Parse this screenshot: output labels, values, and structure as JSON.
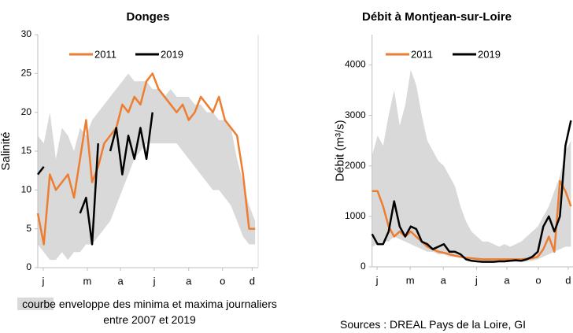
{
  "chart_data": [
    {
      "type": "line",
      "title": "Donges",
      "ylabel": "Salinité",
      "x": [
        0,
        10,
        20,
        30,
        40,
        50,
        60,
        70,
        80,
        90,
        100,
        110,
        120,
        130,
        140,
        150,
        160,
        170,
        180,
        190,
        200,
        210,
        220,
        230,
        240,
        250,
        260,
        270,
        280,
        290,
        300,
        310,
        320,
        330,
        340,
        350,
        360
      ],
      "xlim": [
        0,
        365
      ],
      "xticks": [
        {
          "value": 9,
          "label": "j"
        },
        {
          "value": 82,
          "label": "m"
        },
        {
          "value": 137,
          "label": "a"
        },
        {
          "value": 193,
          "label": "j"
        },
        {
          "value": 250,
          "label": "a"
        },
        {
          "value": 306,
          "label": "o"
        },
        {
          "value": 355,
          "label": "d"
        }
      ],
      "ylim": [
        0,
        30
      ],
      "yticks": [
        0,
        5,
        10,
        15,
        20,
        25,
        30
      ],
      "envelope": {
        "name": "courbe enveloppe des minima et maxima journaliers entre 2007 et 2019",
        "color": "#d9d9d9",
        "low": [
          3,
          2,
          1,
          1,
          2,
          1,
          2,
          2,
          3,
          3,
          4,
          5,
          6,
          8,
          10,
          12,
          14,
          15,
          16,
          16,
          16,
          16,
          16,
          16,
          15,
          14,
          13,
          12,
          11,
          10,
          10,
          9,
          8,
          6,
          4,
          3,
          3
        ],
        "high": [
          17,
          16,
          20,
          14,
          18,
          17,
          15,
          18,
          17,
          19,
          20,
          21,
          22,
          23,
          24,
          25,
          24,
          24,
          24,
          23,
          23,
          22,
          23,
          22,
          22,
          22,
          21,
          21,
          20,
          20,
          19,
          19,
          18,
          14,
          11,
          8,
          6
        ]
      },
      "series": [
        {
          "name": "2011",
          "color": "#ed7d31",
          "values": [
            7,
            3,
            12,
            10,
            11,
            12,
            9,
            14,
            19,
            11,
            13,
            16,
            17,
            18,
            21,
            20,
            22,
            21,
            24,
            25,
            23,
            22,
            21,
            20,
            21,
            19,
            20,
            22,
            21,
            20,
            22,
            19,
            18,
            17,
            12,
            5,
            5
          ]
        },
        {
          "name": "2019",
          "color": "#000000",
          "values": [
            12,
            13,
            null,
            null,
            null,
            10,
            null,
            7,
            9,
            3,
            16,
            null,
            15,
            18,
            12,
            17,
            14,
            18,
            14,
            20,
            null,
            null,
            null,
            null,
            null,
            null,
            null,
            null,
            null,
            null,
            null,
            null,
            null,
            null,
            null,
            null,
            null
          ]
        }
      ]
    },
    {
      "type": "line",
      "title": "Débit à Montjean-sur-Loire",
      "ylabel": "Débit (m³/s)",
      "x": [
        0,
        10,
        20,
        30,
        40,
        50,
        60,
        70,
        80,
        90,
        100,
        110,
        120,
        130,
        140,
        150,
        160,
        170,
        180,
        190,
        200,
        210,
        220,
        230,
        240,
        250,
        260,
        270,
        280,
        290,
        300,
        310,
        320,
        330,
        340,
        350,
        360
      ],
      "xlim": [
        0,
        365
      ],
      "xticks": [
        {
          "value": 9,
          "label": "j"
        },
        {
          "value": 69,
          "label": "m"
        },
        {
          "value": 129,
          "label": "a"
        },
        {
          "value": 189,
          "label": "j"
        },
        {
          "value": 244,
          "label": "a"
        },
        {
          "value": 301,
          "label": "o"
        },
        {
          "value": 355,
          "label": "d"
        }
      ],
      "ylim": [
        0,
        4600
      ],
      "yticks": [
        0,
        1000,
        2000,
        3000,
        4000
      ],
      "envelope": {
        "color": "#d9d9d9",
        "low": [
          400,
          450,
          500,
          500,
          600,
          550,
          500,
          450,
          400,
          350,
          300,
          300,
          250,
          250,
          200,
          200,
          180,
          150,
          150,
          130,
          120,
          110,
          110,
          100,
          100,
          100,
          100,
          100,
          110,
          120,
          150,
          200,
          250,
          300,
          350,
          400,
          400
        ],
        "high": [
          2200,
          2600,
          2400,
          3000,
          3500,
          2800,
          3200,
          3900,
          3600,
          3000,
          2500,
          2300,
          2100,
          2000,
          1800,
          1600,
          1200,
          900,
          700,
          600,
          500,
          500,
          450,
          400,
          450,
          400,
          450,
          500,
          600,
          700,
          800,
          1000,
          1200,
          1500,
          1800,
          2300,
          2500
        ]
      },
      "series": [
        {
          "name": "2011",
          "color": "#ed7d31",
          "values": [
            1500,
            1500,
            1200,
            800,
            600,
            700,
            600,
            700,
            600,
            500,
            400,
            350,
            300,
            280,
            250,
            220,
            200,
            180,
            170,
            160,
            150,
            150,
            150,
            150,
            150,
            150,
            150,
            150,
            160,
            170,
            200,
            350,
            600,
            300,
            1700,
            1500,
            1200
          ]
        },
        {
          "name": "2019",
          "color": "#000000",
          "values": [
            650,
            450,
            450,
            700,
            1300,
            800,
            600,
            800,
            750,
            500,
            450,
            350,
            400,
            450,
            300,
            300,
            250,
            150,
            120,
            110,
            100,
            100,
            100,
            110,
            110,
            120,
            130,
            120,
            150,
            200,
            300,
            800,
            1000,
            700,
            1000,
            2400,
            2900
          ]
        }
      ]
    }
  ],
  "source": "Sources : DREAL Pays de la Loire, GI"
}
